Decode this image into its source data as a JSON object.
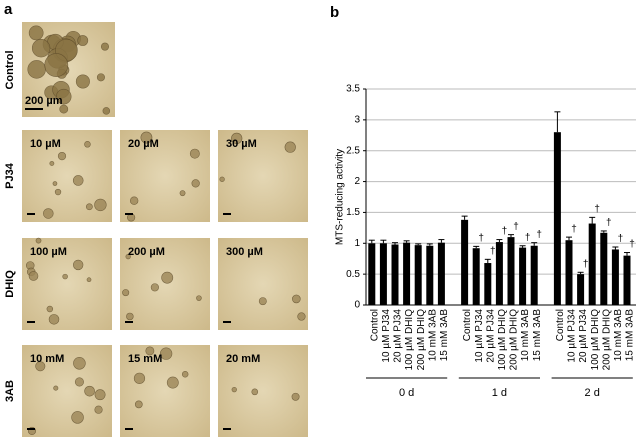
{
  "panel_a": {
    "label": "a",
    "control": {
      "row_label": "Control",
      "scale": "200 µm"
    },
    "rows": [
      {
        "label": "PJ34",
        "images": [
          "10 µM",
          "20 µM",
          "30 µM"
        ]
      },
      {
        "label": "DHIQ",
        "images": [
          "100 µM",
          "200 µM",
          "300 µM"
        ]
      },
      {
        "label": "3AB",
        "images": [
          "10 mM",
          "15 mM",
          "20 mM"
        ]
      }
    ]
  },
  "chart_data": {
    "type": "bar",
    "panel_label": "b",
    "y_label": "MTS-reducing activity",
    "color": "#000000",
    "ylim": [
      0,
      3.5
    ],
    "yticks": [
      0,
      0.5,
      1,
      1.5,
      2,
      2.5,
      3,
      3.5
    ],
    "grid": true,
    "groups": [
      {
        "name": "0 d",
        "categories": [
          "Control",
          "10 µM PJ34",
          "20 µM PJ34",
          "100 µM DHIQ",
          "200 µM DHIQ",
          "10 mM 3AB",
          "15 mM 3AB"
        ],
        "values": [
          1.0,
          1.0,
          0.98,
          1.01,
          0.97,
          0.96,
          1.01
        ],
        "errors": [
          0.05,
          0.05,
          0.03,
          0.03,
          0.02,
          0.03,
          0.05
        ],
        "markers": [
          null,
          null,
          null,
          null,
          null,
          null,
          null
        ]
      },
      {
        "name": "1 d",
        "categories": [
          "Control",
          "10 µM PJ34",
          "20 µM PJ34",
          "100 µM DHIQ",
          "200 µM DHIQ",
          "10 mM 3AB",
          "15 mM 3AB"
        ],
        "values": [
          1.38,
          0.92,
          0.68,
          1.02,
          1.1,
          0.93,
          0.96
        ],
        "errors": [
          0.06,
          0.03,
          0.06,
          0.04,
          0.04,
          0.03,
          0.05
        ],
        "markers": [
          null,
          "†",
          "†",
          "†",
          "†",
          "†",
          "†"
        ]
      },
      {
        "name": "2 d",
        "categories": [
          "Control",
          "10 µM PJ34",
          "20 µM PJ34",
          "100 µM DHIQ",
          "200 µM DHIQ",
          "10 mM 3AB",
          "15 mM 3AB"
        ],
        "values": [
          2.8,
          1.05,
          0.5,
          1.32,
          1.17,
          0.9,
          0.8
        ],
        "errors": [
          0.33,
          0.05,
          0.03,
          0.1,
          0.03,
          0.04,
          0.05
        ],
        "markers": [
          null,
          "†",
          "†",
          "†",
          "†",
          "†",
          "†"
        ]
      }
    ]
  }
}
